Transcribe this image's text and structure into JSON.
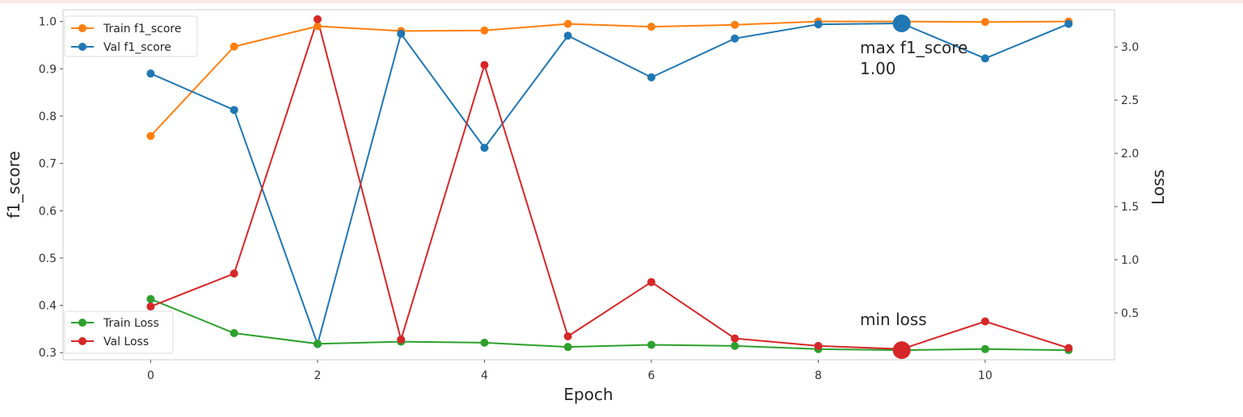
{
  "chart_data": {
    "type": "line",
    "x": [
      0,
      1,
      2,
      3,
      4,
      5,
      6,
      7,
      8,
      9,
      10,
      11
    ],
    "xlabel": "Epoch",
    "ylabel_left": "f1_score",
    "ylabel_right": "Loss",
    "xlim": [
      -1.05,
      11.55
    ],
    "ylim_left": [
      0.285,
      1.025
    ],
    "ylim_right": [
      0.06,
      3.35
    ],
    "xticks": [
      0,
      2,
      4,
      6,
      8,
      10
    ],
    "yticks_left": [
      "0.3",
      "0.4",
      "0.5",
      "0.6",
      "0.7",
      "0.8",
      "0.9",
      "1.0"
    ],
    "yticks_right": [
      "0.5",
      "1.0",
      "1.5",
      "2.0",
      "2.5",
      "3.0"
    ],
    "grid": false,
    "series": [
      {
        "name": "Train f1_score",
        "axis": "left",
        "color": "#ff7f0e",
        "values": [
          0.758,
          0.947,
          0.99,
          0.98,
          0.981,
          0.995,
          0.989,
          0.993,
          1.0,
          1.0,
          0.999,
          1.0
        ]
      },
      {
        "name": "Val f1_score",
        "axis": "left",
        "color": "#1f77b4",
        "values": [
          0.89,
          0.813,
          0.318,
          0.974,
          0.733,
          0.97,
          0.882,
          0.964,
          0.994,
          0.996,
          0.922,
          0.995
        ]
      },
      {
        "name": "Train Loss",
        "axis": "right",
        "color": "#2ca02c",
        "values": [
          0.63,
          0.31,
          0.21,
          0.23,
          0.22,
          0.18,
          0.2,
          0.19,
          0.16,
          0.15,
          0.16,
          0.15
        ]
      },
      {
        "name": "Val Loss",
        "axis": "right",
        "color": "#d62728",
        "values": [
          0.56,
          0.87,
          3.26,
          0.25,
          2.83,
          0.28,
          0.79,
          0.26,
          0.19,
          0.16,
          0.42,
          0.17
        ]
      }
    ],
    "legends": [
      {
        "placement": "upper-left",
        "items": [
          "Train f1_score",
          "Val f1_score"
        ]
      },
      {
        "placement": "lower-left",
        "items": [
          "Train Loss",
          "Val Loss"
        ]
      }
    ],
    "annotations": [
      {
        "text_line1": "max f1_score",
        "text_line2": "1.00",
        "x": 9,
        "y": 0.996,
        "axis": "left",
        "color": "#1f77b4"
      },
      {
        "text": "min loss",
        "x": 9,
        "y": 0.15,
        "axis": "right",
        "color": "#d62728"
      }
    ]
  }
}
